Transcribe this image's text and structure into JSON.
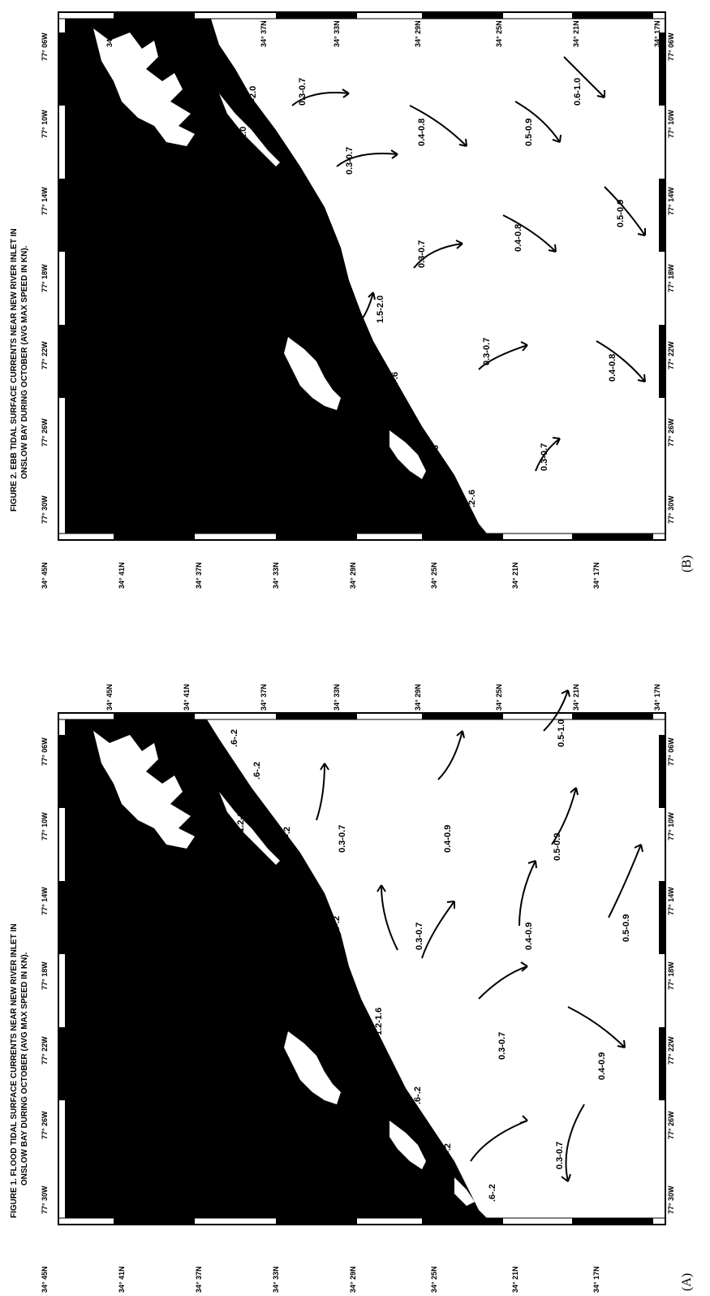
{
  "panels": [
    {
      "id": "A",
      "letter": "(A)",
      "title_line1": "FIGURE 1.   FLOOD TIDAL SURFACE CURRENTS NEAR NEW RIVER INLET IN",
      "title_line2": "ONSLOW BAY DURING OCTOBER (AVG MAX SPEED IN KN).",
      "lat_labels": [
        "34° 45N",
        "34° 41N",
        "34° 37N",
        "34° 33N",
        "34° 29N",
        "34° 25N",
        "34° 21N",
        "34° 17N"
      ],
      "lon_labels": [
        "77° 30W",
        "77° 26W",
        "77° 22W",
        "77° 18W",
        "77° 14W",
        "77° 10W",
        "77° 06W"
      ],
      "current_labels": [
        "1.2-1.6",
        "1.2-1.6",
        ".6-.2",
        ".6-.2",
        ".6-.2",
        ".6-.2",
        ".6-.2",
        ".6-.2",
        ".6-.2",
        "0.3-0.7",
        "0.3-0.7",
        "0.3-0.7",
        "0.3-0.7",
        "0.4-0.9",
        "0.4-0.9",
        "0.4-0.9",
        "0.5-0.9",
        "0.5-0.9",
        "0.5-1.0"
      ]
    },
    {
      "id": "B",
      "letter": "(B)",
      "title_line1": "FIGURE 2.   EBB TIDAL SURFACE CURRENTS NEAR NEW RIVER INLET IN",
      "title_line2": "ONSLOW BAY DURING OCTOBER (AVG MAX SPEED IN KN).",
      "lat_labels": [
        "34° 45N",
        "34° 41N",
        "34° 37N",
        "34° 33N",
        "34° 29N",
        "34° 25N",
        "34° 21N",
        "34° 17N"
      ],
      "lon_labels": [
        "77° 30W",
        "77° 26W",
        "77° 22W",
        "77° 18W",
        "77° 14W",
        "77° 10W",
        "77° 06W"
      ],
      "current_labels": [
        "1.5-2.0",
        "1.5-2.0",
        ".2-.6",
        ".2-.6",
        ".2-.6",
        ".2-.6",
        "0.6-1.0",
        "0.6-1.0",
        "0.6-1.0",
        "0.3-0.7",
        "0.3-0.7",
        "0.3-0.7",
        "0.3-0.7",
        "0.3-0.7",
        "0.4-0.8",
        "0.4-0.8",
        "0.4-0.8",
        "0.5-0.9",
        "0.5-0.9",
        "0.6-1.0"
      ]
    }
  ],
  "colors": {
    "land": "#000000",
    "water": "#ffffff",
    "ink": "#000000"
  }
}
